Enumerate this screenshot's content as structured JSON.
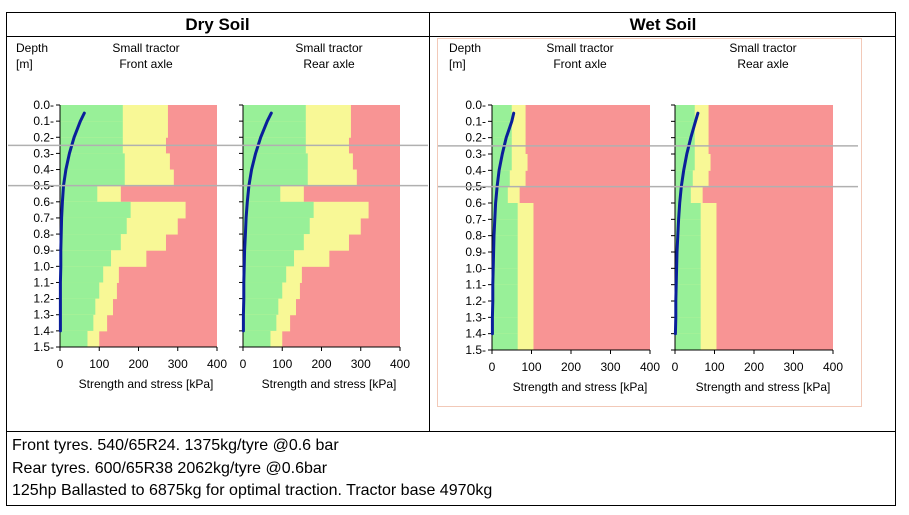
{
  "page": {
    "dry_title": "Dry Soil",
    "wet_title": "Wet Soil",
    "notes": [
      "Front tyres. 540/65R24. 1375kg/tyre @0.6 bar",
      "Rear tyres. 600/65R38 2062kg/tyre @0.6bar",
      "125hp Ballasted to 6875kg for optimal traction. Tractor base 4970kg"
    ]
  },
  "colors": {
    "green": "#98f098",
    "yellow": "#f8f896",
    "red": "#f89494",
    "stress_line": "#0a1f9a",
    "reference_line": "#b0b0b0"
  },
  "panel_text": {
    "depth_label": "Depth",
    "unit_label": "[m]",
    "vehicle": "Small tractor",
    "front": "Front axle",
    "rear": "Rear axle",
    "xlabel": "Strength and stress [kPa]"
  },
  "chart_data": [
    {
      "type": "area",
      "panel": "dry-soil",
      "xlabel": "Strength and stress [kPa]",
      "ylabel": "Depth [m]",
      "xlim": [
        0,
        400
      ],
      "ylim": [
        1.5,
        0.0
      ],
      "x_ticks": [
        0,
        100,
        200,
        300,
        400
      ],
      "y_ticks": [
        0.0,
        0.1,
        0.2,
        0.3,
        0.4,
        0.5,
        0.6,
        0.7,
        0.8,
        0.9,
        1.0,
        1.1,
        1.2,
        1.3,
        1.4,
        1.5
      ],
      "reference_depths": [
        0.25,
        0.5
      ],
      "depth_boundaries": [
        0.0,
        0.1,
        0.2,
        0.3,
        0.4,
        0.5,
        0.6,
        0.7,
        0.8,
        0.9,
        1.0,
        1.1,
        1.2,
        1.3,
        1.4,
        1.5
      ],
      "green_limit": [
        160,
        160,
        160,
        165,
        165,
        95,
        180,
        170,
        155,
        130,
        110,
        100,
        90,
        85,
        70
      ],
      "yellow_limit": [
        275,
        275,
        270,
        280,
        290,
        155,
        320,
        300,
        270,
        220,
        150,
        145,
        135,
        120,
        100
      ],
      "axles": [
        {
          "name": "Front axle",
          "stress_depth": [
            0.05,
            0.1,
            0.2,
            0.3,
            0.4,
            0.5,
            0.6,
            0.7,
            0.8,
            0.9,
            1.0,
            1.1,
            1.2,
            1.3,
            1.4
          ],
          "stress": [
            62,
            52,
            36,
            24,
            15,
            9,
            6,
            4,
            3,
            2,
            2,
            1,
            1,
            1,
            1
          ]
        },
        {
          "name": "Rear axle",
          "stress_depth": [
            0.05,
            0.1,
            0.2,
            0.3,
            0.4,
            0.5,
            0.6,
            0.7,
            0.8,
            0.9,
            1.0,
            1.1,
            1.2,
            1.3,
            1.4
          ],
          "stress": [
            72,
            62,
            45,
            32,
            22,
            15,
            11,
            8,
            6,
            4,
            3,
            2,
            2,
            1,
            1
          ]
        }
      ]
    },
    {
      "type": "area",
      "panel": "wet-soil",
      "xlabel": "Strength and stress [kPa]",
      "ylabel": "Depth [m]",
      "xlim": [
        0,
        400
      ],
      "ylim": [
        1.5,
        0.0
      ],
      "x_ticks": [
        0,
        100,
        200,
        300,
        400
      ],
      "y_ticks": [
        0.0,
        0.1,
        0.2,
        0.3,
        0.4,
        0.5,
        0.6,
        0.7,
        0.8,
        0.9,
        1.0,
        1.1,
        1.2,
        1.3,
        1.4,
        1.5
      ],
      "reference_depths": [
        0.25,
        0.5
      ],
      "depth_boundaries": [
        0.0,
        0.1,
        0.2,
        0.3,
        0.4,
        0.5,
        0.6,
        0.7,
        0.8,
        0.9,
        1.0,
        1.1,
        1.2,
        1.3,
        1.4,
        1.5
      ],
      "green_limit": [
        50,
        50,
        50,
        50,
        45,
        40,
        65,
        65,
        65,
        65,
        65,
        65,
        65,
        65,
        65
      ],
      "yellow_limit": [
        85,
        85,
        85,
        90,
        85,
        70,
        105,
        105,
        105,
        105,
        105,
        105,
        105,
        105,
        105
      ],
      "axles": [
        {
          "name": "Front axle",
          "stress_depth": [
            0.05,
            0.1,
            0.2,
            0.3,
            0.4,
            0.5,
            0.6,
            0.7,
            0.8,
            0.9,
            1.0,
            1.1,
            1.2,
            1.3,
            1.4
          ],
          "stress": [
            55,
            50,
            36,
            26,
            18,
            13,
            9,
            7,
            5,
            4,
            3,
            2,
            2,
            1,
            1
          ]
        },
        {
          "name": "Rear axle",
          "stress_depth": [
            0.05,
            0.1,
            0.2,
            0.3,
            0.4,
            0.5,
            0.6,
            0.7,
            0.8,
            0.9,
            1.0,
            1.1,
            1.2,
            1.3,
            1.4
          ],
          "stress": [
            58,
            52,
            40,
            30,
            22,
            16,
            12,
            9,
            7,
            5,
            4,
            3,
            2,
            2,
            1
          ]
        }
      ]
    }
  ]
}
